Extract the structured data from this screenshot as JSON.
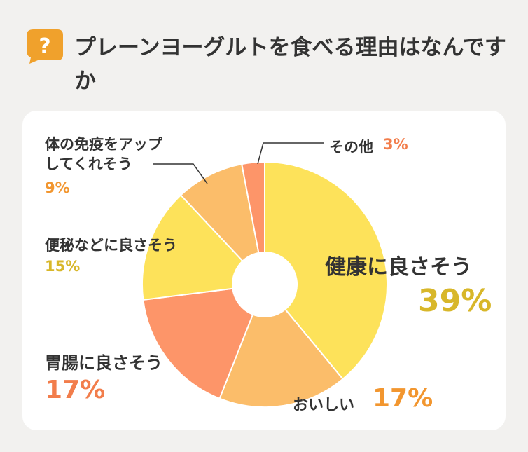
{
  "header": {
    "icon": "question-mark-icon",
    "icon_glyph": "?",
    "icon_color": "#f0a12c",
    "title": "プレーンヨーグルトを食べる理由はなんですか"
  },
  "chart_data": {
    "type": "pie",
    "title": "プレーンヨーグルトを食べる理由はなんですか",
    "hole": true,
    "slices": [
      {
        "label": "健康に良さそう",
        "value": 39,
        "percent_label": "39%",
        "color": "#fde25a",
        "label_color": "#d8b72a"
      },
      {
        "label": "おいしい",
        "value": 17,
        "percent_label": "17%",
        "color": "#fbbd6a",
        "label_color": "#f2962f"
      },
      {
        "label": "胃腸に良さそう",
        "value": 17,
        "percent_label": "17%",
        "color": "#fd9569",
        "label_color": "#f27d4b"
      },
      {
        "label": "便秘などに良さそう",
        "value": 15,
        "percent_label": "15%",
        "color": "#fde25a",
        "label_color": "#d8b72a"
      },
      {
        "label": "体の免疫をアップ\nしてくれそう",
        "value": 9,
        "percent_label": "9%",
        "color": "#fbbd6a",
        "label_color": "#f2962f"
      },
      {
        "label": "その他",
        "value": 3,
        "percent_label": "3%",
        "color": "#fd9569",
        "label_color": "#f27d4b"
      }
    ]
  }
}
